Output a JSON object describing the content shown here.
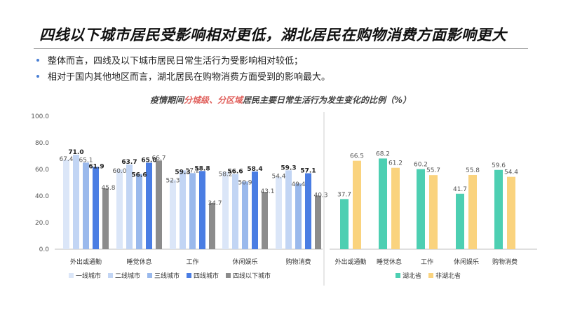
{
  "page": {
    "title": "四线以下城市居民受影响相对更低，湖北居民在购物消费方面影响更大",
    "bullets": [
      "整体而言，四线及以下城市居民日常生活行为受影响相对较低；",
      "相对于国内其他地区而言，湖北居民在购物消费方面受到的影响最大。"
    ],
    "subtitle": {
      "prefix": "疫情期间",
      "highlight": "分城级、分区域",
      "suffix": "居民主要日常生活行为发生变化的比例（%）"
    }
  },
  "chart_data": [
    {
      "type": "bar",
      "y_ticks": [
        "0.0",
        "20.0",
        "40.0",
        "60.0",
        "80.0",
        "100.0"
      ],
      "ylim": [
        0,
        100
      ],
      "categories": [
        "外出或通勤",
        "睡觉休息",
        "工作",
        "休闲娱乐",
        "购物消费"
      ],
      "series": [
        {
          "name": "一线城市",
          "color": "#dbe6f8",
          "values": [
            67.4,
            60.0,
            52.3,
            58.2,
            54.4
          ],
          "labels": [
            "67.4",
            "60.0",
            "52.3",
            "58.2",
            "54.4"
          ]
        },
        {
          "name": "二线城市",
          "color": "#c2d5f4",
          "values": [
            71.0,
            63.7,
            59.3,
            56.6,
            59.3
          ],
          "labels": [
            "71.0",
            "63.7",
            "59.3",
            "56.6",
            "59.3"
          ]
        },
        {
          "name": "三线城市",
          "color": "#9ab9ec",
          "values": [
            65.1,
            56.6,
            57.2,
            50.9,
            49.4
          ],
          "labels": [
            "65.1",
            "56.6",
            "57.2",
            "50.9",
            "49.4"
          ]
        },
        {
          "name": "四线城市",
          "color": "#4a7de3",
          "values": [
            61.9,
            65.0,
            58.8,
            58.4,
            57.1
          ],
          "labels": [
            "61.9",
            "65.0",
            "58.8",
            "58.4",
            "57.1"
          ]
        },
        {
          "name": "四线以下城市",
          "color": "#8c8c8c",
          "values": [
            45.8,
            66.7,
            34.7,
            43.1,
            40.3
          ],
          "labels": [
            "45.8",
            "66.7",
            "34.7",
            "43.1",
            "40.3"
          ]
        }
      ]
    },
    {
      "type": "bar",
      "ylim": [
        0,
        100
      ],
      "categories": [
        "外出或通勤",
        "睡觉休息",
        "工作",
        "休闲娱乐",
        "购物消费"
      ],
      "series": [
        {
          "name": "湖北省",
          "color": "#4dcfb2",
          "values": [
            37.7,
            68.2,
            60.2,
            41.7,
            59.6
          ],
          "labels": [
            "37.7",
            "68.2",
            "60.2",
            "41.7",
            "59.6"
          ]
        },
        {
          "name": "非湖北省",
          "color": "#fad37e",
          "values": [
            66.5,
            61.2,
            55.7,
            55.8,
            54.4
          ],
          "labels": [
            "66.5",
            "61.2",
            "55.7",
            "55.8",
            "54.4"
          ]
        }
      ]
    }
  ]
}
